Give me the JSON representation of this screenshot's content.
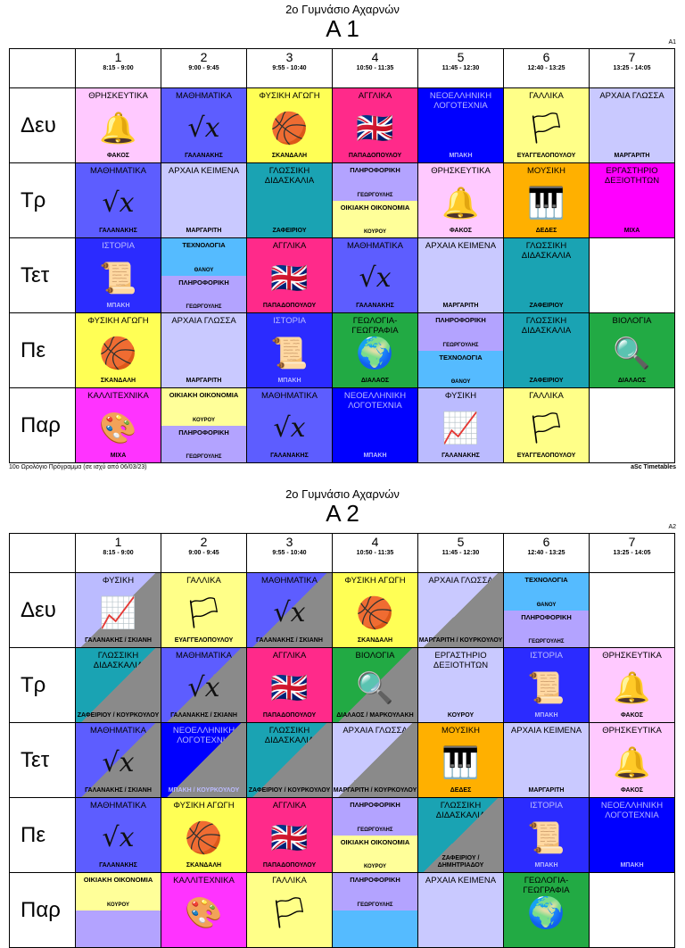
{
  "school": "2ο Γυμνάσιο Αχαρνών",
  "footer_left": "10ο Ωρολόγιο Πρόγραμμα (σε ισχύ από 06/03/23)",
  "footer_right": "aSc Timetables",
  "periods": [
    {
      "num": "1",
      "time": "8:15 - 9:00"
    },
    {
      "num": "2",
      "time": "9:00 - 9:45"
    },
    {
      "num": "3",
      "time": "9:55 - 10:40"
    },
    {
      "num": "4",
      "time": "10:50 - 11:35"
    },
    {
      "num": "5",
      "time": "11:45 - 12:30"
    },
    {
      "num": "6",
      "time": "12:40 - 13:25"
    },
    {
      "num": "7",
      "time": "13:25 - 14:05"
    }
  ],
  "days": [
    "Δευ",
    "Τρ",
    "Τετ",
    "Πε",
    "Παρ"
  ],
  "colors": {
    "religion": "#ffc9ff",
    "math": "#5d5dff",
    "pe": "#ffff55",
    "english": "#ff2a8a",
    "modern_lit": "#0000ff"
  },
  "timetables": [
    {
      "name": "Α 1",
      "code": "A1",
      "rows": [
        [
          {
            "subject": "ΘΡΗΣΚΕΥΤΙΚΑ",
            "teacher": "ΦΑΚΟΣ",
            "cls": "c-rel",
            "icon": "bell-icon"
          },
          {
            "subject": "ΜΑΘΗΜΑΤΙΚΑ",
            "teacher": "ΓΑΛΑΝΑΚΗΣ",
            "cls": "c-math",
            "icon": "sqrt-icon"
          },
          {
            "subject": "ΦΥΣΙΚΗ ΑΓΩΓΗ",
            "teacher": "ΣΚΑΝΔΑΛΗ",
            "cls": "c-pe",
            "icon": "balls-icon"
          },
          {
            "subject": "ΑΓΓΛΙΚΑ",
            "teacher": "ΠΑΠΑΔΟΠΟΥΛΟΥ",
            "cls": "c-eng",
            "icon": "uk-flag-icon"
          },
          {
            "subject": "ΝΕΟΕΛΛΗΝΙΚΗ ΛΟΓΟΤΕΧΝΙΑ",
            "teacher": "ΜΠΑΚΗ",
            "cls": "c-neo"
          },
          {
            "subject": "ΓΑΛΛΙΚΑ",
            "teacher": "ΕΥΑΓΓΕΛΟΠΟΥΛΟΥ",
            "cls": "c-fr",
            "icon": "fr-flag-icon"
          },
          {
            "subject": "ΑΡΧΑΙΑ ΓΛΩΣΣΑ",
            "teacher": "ΜΑΡΓΑΡΙΤΗ",
            "cls": "c-arch"
          }
        ],
        [
          {
            "subject": "ΜΑΘΗΜΑΤΙΚΑ",
            "teacher": "ΓΑΛΑΝΑΚΗΣ",
            "cls": "c-math",
            "icon": "sqrt-icon"
          },
          {
            "subject": "ΑΡΧΑΙΑ ΚΕΙΜΕΝΑ",
            "teacher": "ΜΑΡΓΑΡΙΤΗ",
            "cls": "c-arch"
          },
          {
            "subject": "ΓΛΩΣΣΙΚΗ ΔΙΔΑΣΚΑΛΙΑ",
            "teacher": "ΖΑΦΕΙΡΙΟΥ",
            "cls": "c-lang"
          },
          {
            "split": [
              {
                "subject": "ΠΛΗΡΟΦΟΡΙΚΗ",
                "teacher": "ΓΕΩΡΓΟΥΛΗΣ",
                "cls": "c-info"
              },
              {
                "subject": "ΟΙΚΙΑΚΗ ΟΙΚΟΝΟΜΙΑ",
                "teacher": "ΚΟΥΡΟΥ",
                "cls": "c-home"
              }
            ]
          },
          {
            "subject": "ΘΡΗΣΚΕΥΤΙΚΑ",
            "teacher": "ΦΑΚΟΣ",
            "cls": "c-rel",
            "icon": "bell-icon"
          },
          {
            "subject": "ΜΟΥΣΙΚΗ",
            "teacher": "ΔΕΔΕΣ",
            "cls": "c-music",
            "icon": "piano-icon"
          },
          {
            "subject": "ΕΡΓΑΣΤΗΡΙΟ ΔΕΞΙΟΤΗΤΩΝ",
            "teacher": "ΜΙΧΑ",
            "cls": "c-lab"
          }
        ],
        [
          {
            "subject": "ΙΣΤΟΡΙΑ",
            "teacher": "ΜΠΑΚΗ",
            "cls": "c-hist",
            "icon": "scroll-icon"
          },
          {
            "split": [
              {
                "subject": "ΤΕΧΝΟΛΟΓΙΑ",
                "teacher": "ΘΑΝΟΥ",
                "cls": "c-tech"
              },
              {
                "subject": "ΠΛΗΡΟΦΟΡΙΚΗ",
                "teacher": "ΓΕΩΡΓΟΥΛΗΣ",
                "cls": "c-info"
              }
            ]
          },
          {
            "subject": "ΑΓΓΛΙΚΑ",
            "teacher": "ΠΑΠΑΔΟΠΟΥΛΟΥ",
            "cls": "c-eng",
            "icon": "uk-flag-icon"
          },
          {
            "subject": "ΜΑΘΗΜΑΤΙΚΑ",
            "teacher": "ΓΑΛΑΝΑΚΗΣ",
            "cls": "c-math",
            "icon": "sqrt-icon"
          },
          {
            "subject": "ΑΡΧΑΙΑ ΚΕΙΜΕΝΑ",
            "teacher": "ΜΑΡΓΑΡΙΤΗ",
            "cls": "c-arch"
          },
          {
            "subject": "ΓΛΩΣΣΙΚΗ ΔΙΔΑΣΚΑΛΙΑ",
            "teacher": "ΖΑΦΕΙΡΙΟΥ",
            "cls": "c-lang"
          },
          {
            "empty": true
          }
        ],
        [
          {
            "subject": "ΦΥΣΙΚΗ ΑΓΩΓΗ",
            "teacher": "ΣΚΑΝΔΑΛΗ",
            "cls": "c-pe",
            "icon": "balls-icon"
          },
          {
            "subject": "ΑΡΧΑΙΑ ΓΛΩΣΣΑ",
            "teacher": "ΜΑΡΓΑΡΙΤΗ",
            "cls": "c-arch"
          },
          {
            "subject": "ΙΣΤΟΡΙΑ",
            "teacher": "ΜΠΑΚΗ",
            "cls": "c-hist",
            "icon": "scroll-icon"
          },
          {
            "subject": "ΓΕΩΛΟΓΙΑ-ΓΕΩΓΡΑΦΙΑ",
            "teacher": "ΔΙΑΛΑΟΣ",
            "cls": "c-geo",
            "icon": "globe-icon"
          },
          {
            "split": [
              {
                "subject": "ΠΛΗΡΟΦΟΡΙΚΗ",
                "teacher": "ΓΕΩΡΓΟΥΛΗΣ",
                "cls": "c-info"
              },
              {
                "subject": "ΤΕΧΝΟΛΟΓΙΑ",
                "teacher": "ΘΑΝΟΥ",
                "cls": "c-tech"
              }
            ]
          },
          {
            "subject": "ΓΛΩΣΣΙΚΗ ΔΙΔΑΣΚΑΛΙΑ",
            "teacher": "ΖΑΦΕΙΡΙΟΥ",
            "cls": "c-lang"
          },
          {
            "subject": "ΒΙΟΛΟΓΙΑ",
            "teacher": "ΔΙΑΛΑΟΣ",
            "cls": "c-bio",
            "icon": "magnifier-icon"
          }
        ],
        [
          {
            "subject": "ΚΑΛΛΙΤΕΧΝΙΚΑ",
            "teacher": "ΜΙΧΑ",
            "cls": "c-art",
            "icon": "palette-icon"
          },
          {
            "split": [
              {
                "subject": "ΟΙΚΙΑΚΗ ΟΙΚΟΝΟΜΙΑ",
                "teacher": "ΚΟΥΡΟΥ",
                "cls": "c-home"
              },
              {
                "subject": "ΠΛΗΡΟΦΟΡΙΚΗ",
                "teacher": "ΓΕΩΡΓΟΥΛΗΣ",
                "cls": "c-info"
              }
            ]
          },
          {
            "subject": "ΜΑΘΗΜΑΤΙΚΑ",
            "teacher": "ΓΑΛΑΝΑΚΗΣ",
            "cls": "c-math",
            "icon": "sqrt-icon"
          },
          {
            "subject": "ΝΕΟΕΛΛΗΝΙΚΗ ΛΟΓΟΤΕΧΝΙΑ",
            "teacher": "ΜΠΑΚΗ",
            "cls": "c-neo"
          },
          {
            "subject": "ΦΥΣΙΚΗ",
            "teacher": "ΓΑΛΑΝΑΚΗΣ",
            "cls": "c-phys",
            "icon": "graph-icon"
          },
          {
            "subject": "ΓΑΛΛΙΚΑ",
            "teacher": "ΕΥΑΓΓΕΛΟΠΟΥΛΟΥ",
            "cls": "c-fr",
            "icon": "fr-flag-icon"
          },
          {
            "empty": true
          }
        ]
      ]
    },
    {
      "name": "Α 2",
      "code": "A2",
      "rows": [
        [
          {
            "subject": "ΦΥΣΙΚΗ",
            "teacher": "ΓΑΛΑΝΑΚΗΣ / ΣΚΙΑΝΗ",
            "cls": "c-phys",
            "icon": "graph-icon",
            "gray": true
          },
          {
            "subject": "ΓΑΛΛΙΚΑ",
            "teacher": "ΕΥΑΓΓΕΛΟΠΟΥΛΟΥ",
            "cls": "c-fr",
            "icon": "fr-flag-icon"
          },
          {
            "subject": "ΜΑΘΗΜΑΤΙΚΑ",
            "teacher": "ΓΑΛΑΝΑΚΗΣ / ΣΚΙΑΝΗ",
            "cls": "c-math",
            "icon": "sqrt-icon",
            "gray": true
          },
          {
            "subject": "ΦΥΣΙΚΗ ΑΓΩΓΗ",
            "teacher": "ΣΚΑΝΔΑΛΗ",
            "cls": "c-pe",
            "icon": "balls-icon"
          },
          {
            "subject": "ΑΡΧΑΙΑ ΓΛΩΣΣΑ",
            "teacher": "ΜΑΡΓΑΡΙΤΗ / ΚΟΥΡΚΟΥΛΟΥ",
            "cls": "c-arch",
            "gray": true
          },
          {
            "split": [
              {
                "subject": "ΤΕΧΝΟΛΟΓΙΑ",
                "teacher": "ΘΑΝΟΥ",
                "cls": "c-tech"
              },
              {
                "subject": "ΠΛΗΡΟΦΟΡΙΚΗ",
                "teacher": "ΓΕΩΡΓΟΥΛΗΣ",
                "cls": "c-info"
              }
            ]
          },
          {
            "empty": true
          }
        ],
        [
          {
            "subject": "ΓΛΩΣΣΙΚΗ ΔΙΔΑΣΚΑΛΙΑ",
            "teacher": "ΖΑΦΕΙΡΙΟΥ / ΚΟΥΡΚΟΥΛΟΥ",
            "cls": "c-lang",
            "gray": true
          },
          {
            "subject": "ΜΑΘΗΜΑΤΙΚΑ",
            "teacher": "ΓΑΛΑΝΑΚΗΣ / ΣΚΙΑΝΗ",
            "cls": "c-math",
            "icon": "sqrt-icon",
            "gray": true
          },
          {
            "subject": "ΑΓΓΛΙΚΑ",
            "teacher": "ΠΑΠΑΔΟΠΟΥΛΟΥ",
            "cls": "c-eng",
            "icon": "uk-flag-icon"
          },
          {
            "subject": "ΒΙΟΛΟΓΙΑ",
            "teacher": "ΔΙΑΛΑΟΣ / ΜΑΡΚΟΥΛΑΚΗ",
            "cls": "c-bio",
            "icon": "magnifier-icon",
            "gray": true
          },
          {
            "subject": "ΕΡΓΑΣΤΗΡΙΟ ΔΕΞΙΟΤΗΤΩΝ",
            "teacher": "ΚΟΥΡΟΥ",
            "cls": "c-arch"
          },
          {
            "subject": "ΙΣΤΟΡΙΑ",
            "teacher": "ΜΠΑΚΗ",
            "cls": "c-hist",
            "icon": "scroll-icon"
          },
          {
            "subject": "ΘΡΗΣΚΕΥΤΙΚΑ",
            "teacher": "ΦΑΚΟΣ",
            "cls": "c-rel",
            "icon": "bell-icon"
          }
        ],
        [
          {
            "subject": "ΜΑΘΗΜΑΤΙΚΑ",
            "teacher": "ΓΑΛΑΝΑΚΗΣ / ΣΚΙΑΝΗ",
            "cls": "c-math",
            "icon": "sqrt-icon",
            "gray": true
          },
          {
            "subject": "ΝΕΟΕΛΛΗΝΙΚΗ ΛΟΓΟΤΕΧΝΙΑ",
            "teacher": "ΜΠΑΚΗ / ΚΟΥΡΚΟΥΛΟΥ",
            "cls": "c-neo",
            "gray": true
          },
          {
            "subject": "ΓΛΩΣΣΙΚΗ ΔΙΔΑΣΚΑΛΙΑ",
            "teacher": "ΖΑΦΕΙΡΙΟΥ / ΚΟΥΡΚΟΥΛΟΥ",
            "cls": "c-lang",
            "gray": true
          },
          {
            "subject": "ΑΡΧΑΙΑ ΓΛΩΣΣΑ",
            "teacher": "ΜΑΡΓΑΡΙΤΗ / ΚΟΥΡΚΟΥΛΟΥ",
            "cls": "c-arch",
            "gray": true
          },
          {
            "subject": "ΜΟΥΣΙΚΗ",
            "teacher": "ΔΕΔΕΣ",
            "cls": "c-music",
            "icon": "piano-icon"
          },
          {
            "subject": "ΑΡΧΑΙΑ ΚΕΙΜΕΝΑ",
            "teacher": "ΜΑΡΓΑΡΙΤΗ",
            "cls": "c-arch"
          },
          {
            "subject": "ΘΡΗΣΚΕΥΤΙΚΑ",
            "teacher": "ΦΑΚΟΣ",
            "cls": "c-rel",
            "icon": "bell-icon"
          }
        ],
        [
          {
            "subject": "ΜΑΘΗΜΑΤΙΚΑ",
            "teacher": "ΓΑΛΑΝΑΚΗΣ",
            "cls": "c-math",
            "icon": "sqrt-icon"
          },
          {
            "subject": "ΦΥΣΙΚΗ ΑΓΩΓΗ",
            "teacher": "ΣΚΑΝΔΑΛΗ",
            "cls": "c-pe",
            "icon": "balls-icon"
          },
          {
            "subject": "ΑΓΓΛΙΚΑ",
            "teacher": "ΠΑΠΑΔΟΠΟΥΛΟΥ",
            "cls": "c-eng",
            "icon": "uk-flag-icon"
          },
          {
            "split": [
              {
                "subject": "ΠΛΗΡΟΦΟΡΙΚΗ",
                "teacher": "ΓΕΩΡΓΟΥΛΗΣ",
                "cls": "c-info"
              },
              {
                "subject": "ΟΙΚΙΑΚΗ ΟΙΚΟΝΟΜΙΑ",
                "teacher": "ΚΟΥΡΟΥ",
                "cls": "c-home"
              }
            ]
          },
          {
            "subject": "ΓΛΩΣΣΙΚΗ ΔΙΔΑΣΚΑΛΙΑ",
            "teacher": "ΖΑΦΕΙΡΙΟΥ / ΔΗΜΗΤΡΙΑΔΟΥ",
            "cls": "c-lang",
            "gray": true
          },
          {
            "subject": "ΙΣΤΟΡΙΑ",
            "teacher": "ΜΠΑΚΗ",
            "cls": "c-hist",
            "icon": "scroll-icon"
          },
          {
            "subject": "ΝΕΟΕΛΛΗΝΙΚΗ ΛΟΓΟΤΕΧΝΙΑ",
            "teacher": "ΜΠΑΚΗ",
            "cls": "c-neo"
          }
        ],
        [
          {
            "split": [
              {
                "subject": "ΟΙΚΙΑΚΗ ΟΙΚΟΝΟΜΙΑ",
                "teacher": "ΚΟΥΡΟΥ",
                "cls": "c-home"
              },
              {
                "subject": "",
                "teacher": "",
                "cls": "c-info"
              }
            ]
          },
          {
            "subject": "ΚΑΛΛΙΤΕΧΝΙΚΑ",
            "teacher": "",
            "cls": "c-art",
            "icon": "palette-icon"
          },
          {
            "subject": "ΓΑΛΛΙΚΑ",
            "teacher": "",
            "cls": "c-fr",
            "icon": "fr-flag-icon"
          },
          {
            "split": [
              {
                "subject": "ΠΛΗΡΟΦΟΡΙΚΗ",
                "teacher": "ΓΕΩΡΓΟΥΛΗΣ",
                "cls": "c-info"
              },
              {
                "subject": "",
                "teacher": "",
                "cls": "c-tech"
              }
            ]
          },
          {
            "subject": "ΑΡΧΑΙΑ ΚΕΙΜΕΝΑ",
            "teacher": "",
            "cls": "c-arch"
          },
          {
            "subject": "ΓΕΩΛΟΓΙΑ-ΓΕΩΓΡΑΦΙΑ",
            "teacher": "",
            "cls": "c-geo",
            "icon": "globe-icon"
          },
          {
            "empty": true
          }
        ]
      ]
    }
  ]
}
